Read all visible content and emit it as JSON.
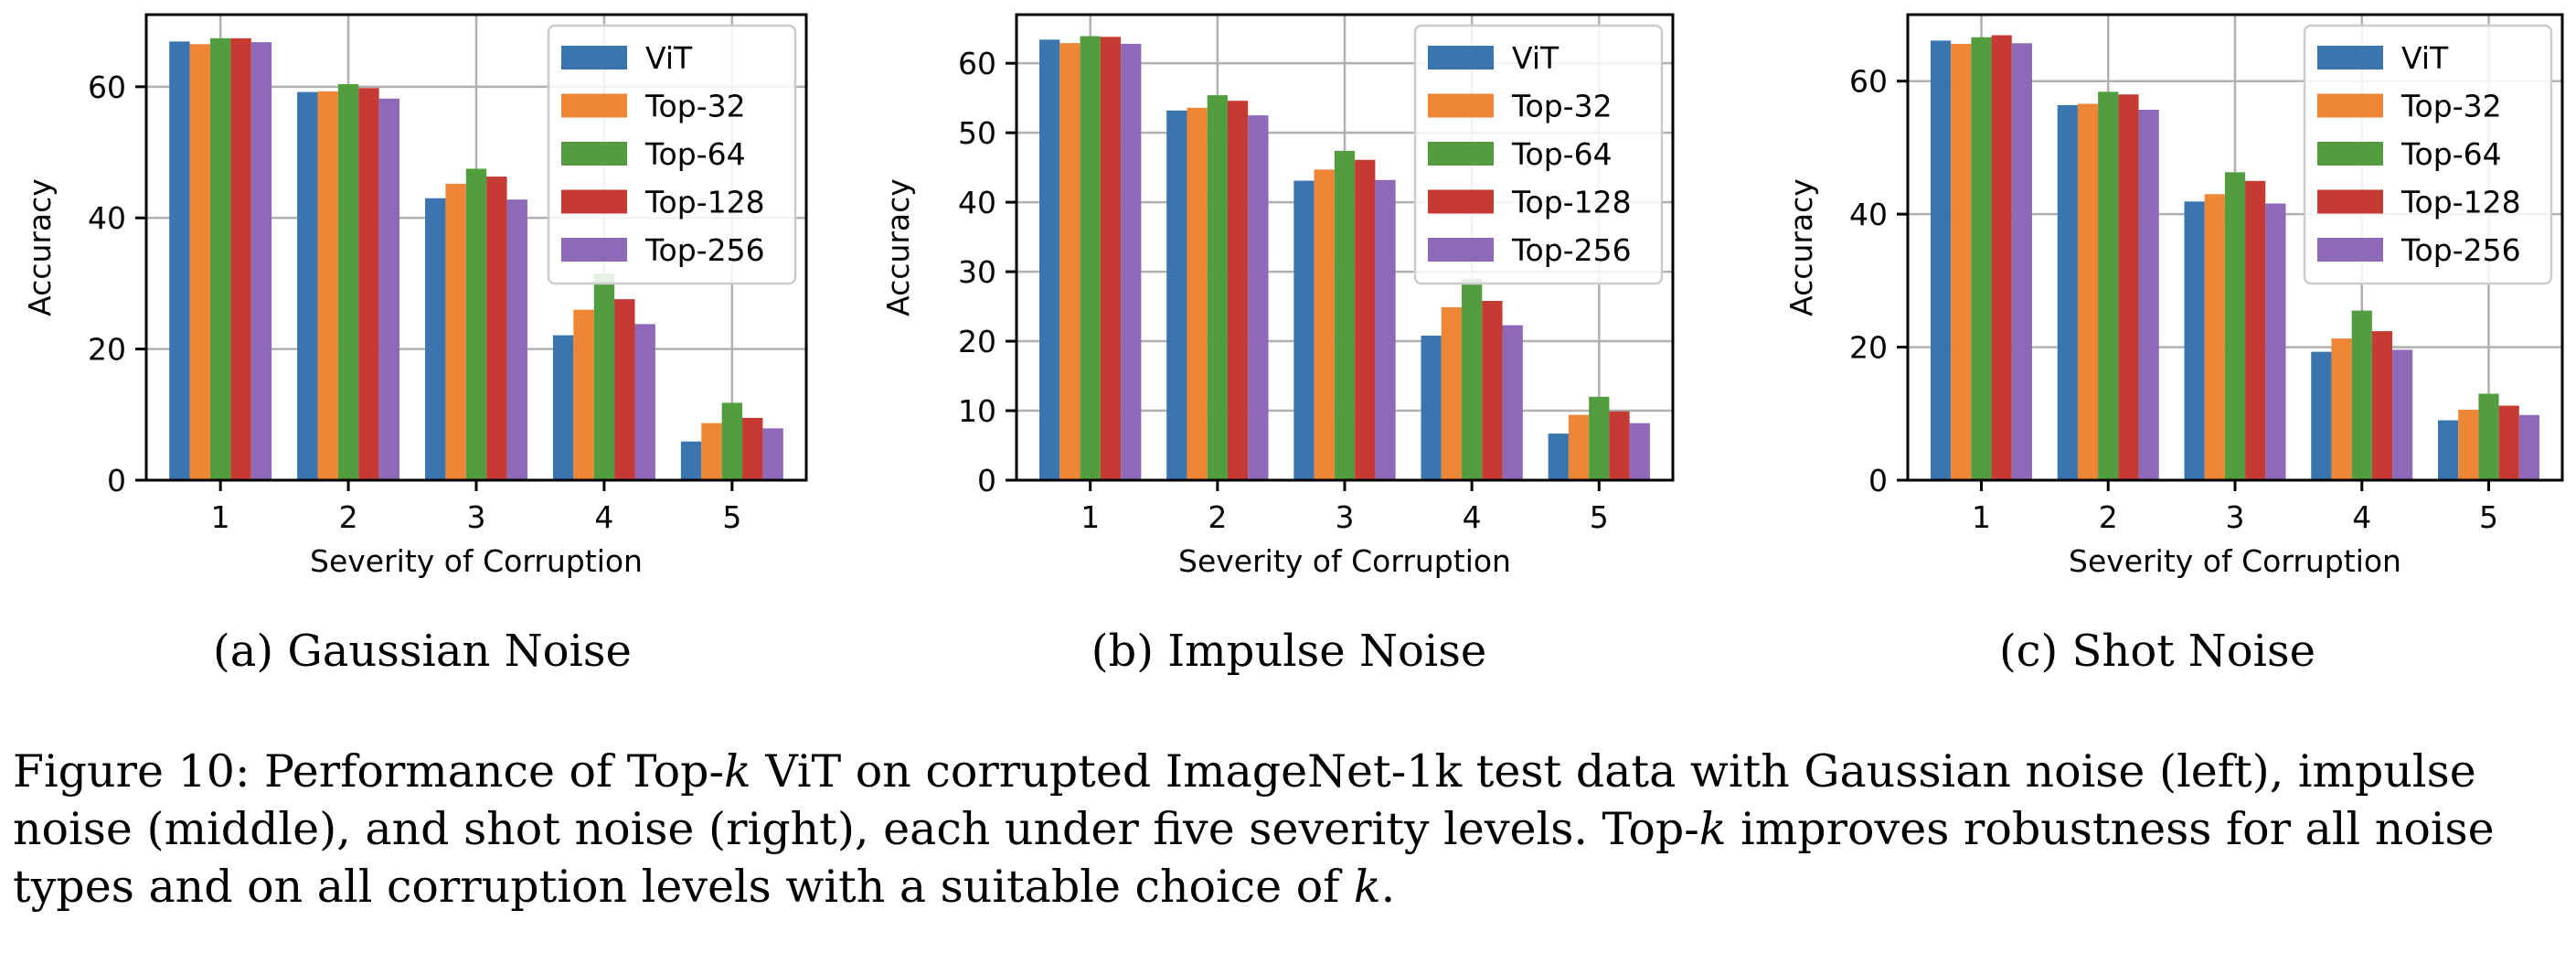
{
  "chart_data": [
    {
      "type": "bar",
      "subcaption": "(a) Gaussian Noise",
      "xlabel": "Severity of Corruption",
      "ylabel": "Accuracy",
      "categories": [
        "1",
        "2",
        "3",
        "4",
        "5"
      ],
      "ylim": [
        0,
        71
      ],
      "yticks": [
        "0",
        "20",
        "40",
        "60"
      ],
      "ytick_values": [
        0,
        20,
        40,
        60
      ],
      "grid": true,
      "legend_position": "top-right",
      "series": [
        {
          "name": "ViT",
          "color": "#3a75af",
          "values": [
            66.9,
            59.2,
            43.0,
            22.1,
            5.9
          ]
        },
        {
          "name": "Top-32",
          "color": "#ef8636",
          "values": [
            66.5,
            59.3,
            45.2,
            26.0,
            8.7
          ]
        },
        {
          "name": "Top-64",
          "color": "#529e3f",
          "values": [
            67.4,
            60.4,
            47.5,
            31.5,
            11.8
          ]
        },
        {
          "name": "Top-128",
          "color": "#c53a32",
          "values": [
            67.4,
            59.8,
            46.3,
            27.6,
            9.5
          ]
        },
        {
          "name": "Top-256",
          "color": "#8d69b8",
          "values": [
            66.8,
            58.2,
            42.8,
            23.8,
            7.9
          ]
        }
      ]
    },
    {
      "type": "bar",
      "subcaption": "(b) Impulse Noise",
      "xlabel": "Severity of Corruption",
      "ylabel": "Accuracy",
      "categories": [
        "1",
        "2",
        "3",
        "4",
        "5"
      ],
      "ylim": [
        0,
        67
      ],
      "yticks": [
        "0",
        "10",
        "20",
        "30",
        "40",
        "50",
        "60"
      ],
      "ytick_values": [
        0,
        10,
        20,
        30,
        40,
        50,
        60
      ],
      "grid": true,
      "legend_position": "top-right",
      "series": [
        {
          "name": "ViT",
          "color": "#3a75af",
          "values": [
            63.4,
            53.2,
            43.1,
            20.8,
            6.7
          ]
        },
        {
          "name": "Top-32",
          "color": "#ef8636",
          "values": [
            62.9,
            53.6,
            44.7,
            24.9,
            9.4
          ]
        },
        {
          "name": "Top-64",
          "color": "#529e3f",
          "values": [
            63.9,
            55.4,
            47.4,
            29.0,
            12.0
          ]
        },
        {
          "name": "Top-128",
          "color": "#c53a32",
          "values": [
            63.8,
            54.6,
            46.1,
            25.8,
            9.9
          ]
        },
        {
          "name": "Top-256",
          "color": "#8d69b8",
          "values": [
            62.8,
            52.5,
            43.2,
            22.3,
            8.2
          ]
        }
      ]
    },
    {
      "type": "bar",
      "subcaption": "(c) Shot Noise",
      "xlabel": "Severity of Corruption",
      "ylabel": "Accuracy",
      "categories": [
        "1",
        "2",
        "3",
        "4",
        "5"
      ],
      "ylim": [
        0,
        70
      ],
      "yticks": [
        "0",
        "20",
        "40",
        "60"
      ],
      "ytick_values": [
        0,
        20,
        40,
        60
      ],
      "grid": true,
      "legend_position": "top-right",
      "series": [
        {
          "name": "ViT",
          "color": "#3a75af",
          "values": [
            66.1,
            56.4,
            41.9,
            19.3,
            9.0
          ]
        },
        {
          "name": "Top-32",
          "color": "#ef8636",
          "values": [
            65.6,
            56.6,
            43.0,
            21.3,
            10.6
          ]
        },
        {
          "name": "Top-64",
          "color": "#529e3f",
          "values": [
            66.6,
            58.4,
            46.3,
            25.5,
            13.0
          ]
        },
        {
          "name": "Top-128",
          "color": "#c53a32",
          "values": [
            66.9,
            58.0,
            45.0,
            22.4,
            11.2
          ]
        },
        {
          "name": "Top-256",
          "color": "#8d69b8",
          "values": [
            65.7,
            55.7,
            41.6,
            19.6,
            9.8
          ]
        }
      ]
    }
  ],
  "caption": {
    "part1": "Figure 10: Performance of Top-",
    "k1": "k",
    "part2": " ViT on corrupted ImageNet-1k test data with Gaussian noise (left), impulse noise (middle), and shot noise (right), each under five severity levels. Top-",
    "k2": "k",
    "part3": " improves robustness for all noise types and on all corruption levels with a suitable choice of ",
    "k3": "k",
    "part4": "."
  }
}
